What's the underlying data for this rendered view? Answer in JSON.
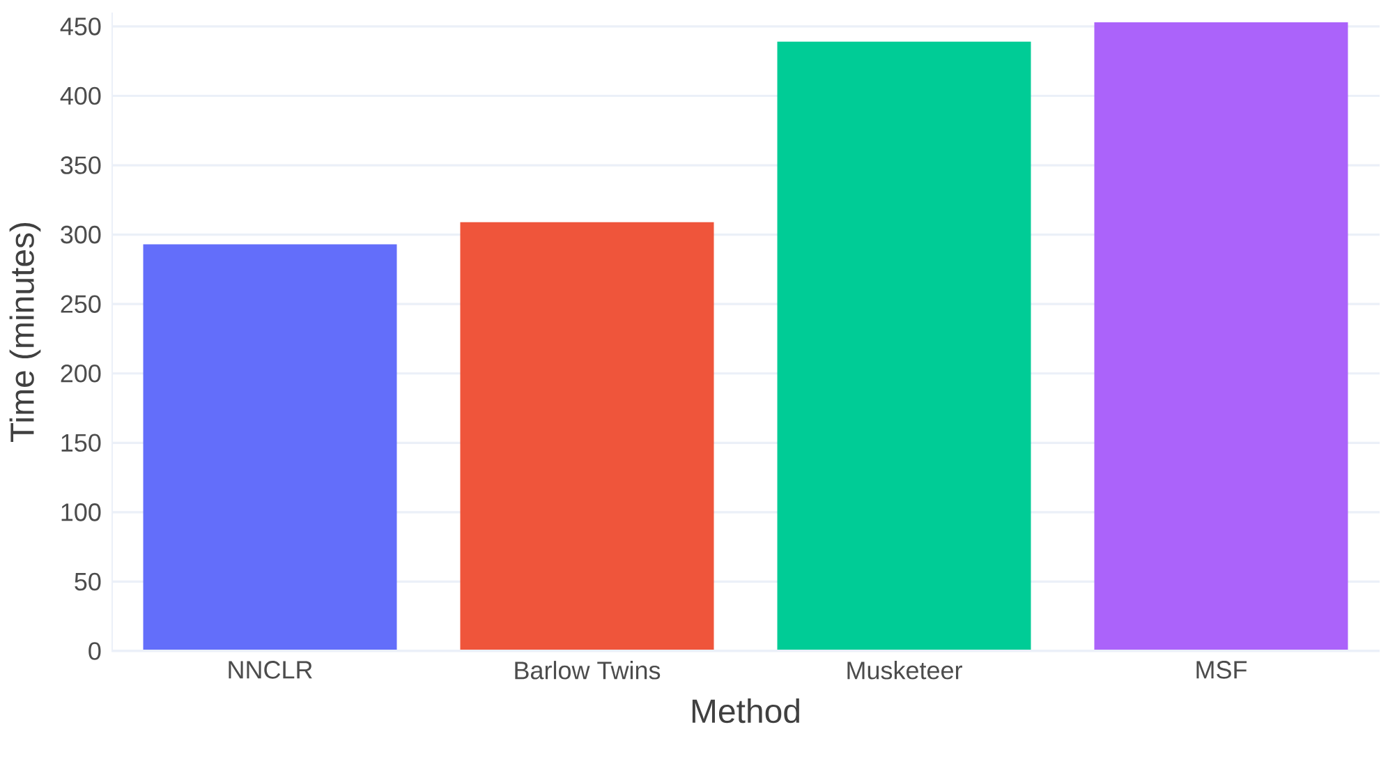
{
  "chart_data": {
    "type": "bar",
    "xlabel": "Method",
    "ylabel": "Time (minutes)",
    "categories": [
      "NNCLR",
      "Barlow Twins",
      "Musketeer",
      "MSF"
    ],
    "values": [
      293,
      309,
      439,
      453
    ],
    "colors": [
      "#636efa",
      "#ef553b",
      "#00cc96",
      "#ab63fa"
    ],
    "ylim": [
      0,
      460
    ],
    "yticks": [
      0,
      50,
      100,
      150,
      200,
      250,
      300,
      350,
      400,
      450
    ],
    "grid": "y"
  }
}
